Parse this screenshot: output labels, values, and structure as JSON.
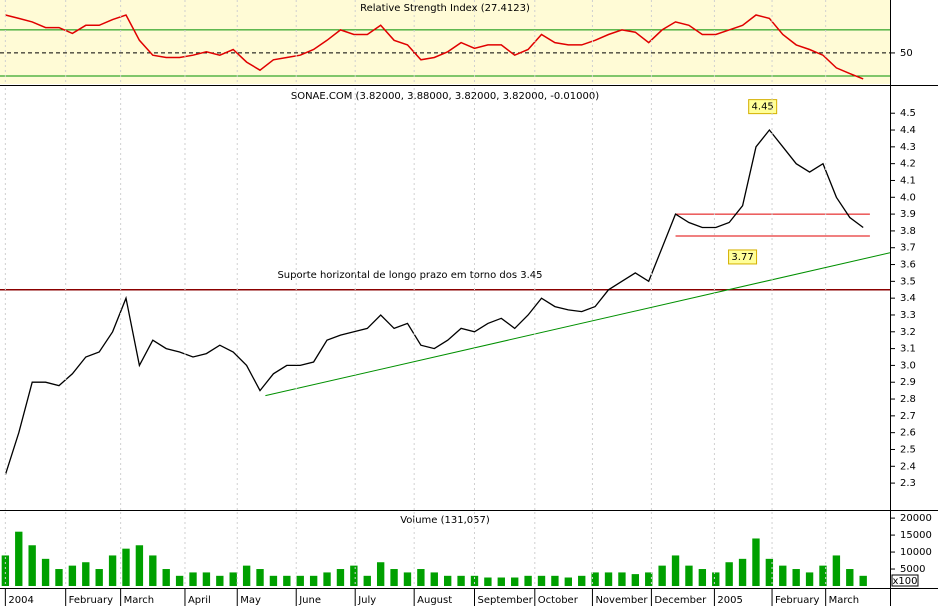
{
  "chart_data": [
    {
      "type": "line",
      "title": "Relative Strength Index (27.4123)",
      "color": "#e00000",
      "x": [
        0,
        1,
        2,
        3,
        4,
        5,
        6,
        7,
        8,
        9,
        10,
        11,
        12,
        13,
        14,
        15,
        16,
        17,
        18,
        19,
        20,
        21,
        22,
        23,
        24,
        25,
        26,
        27,
        28,
        29,
        30,
        31,
        32,
        33,
        34,
        35,
        36,
        37,
        38,
        39,
        40,
        41,
        42,
        43,
        44,
        45,
        46,
        47,
        48,
        49,
        50,
        51,
        52,
        53,
        54,
        55,
        56,
        57,
        58,
        59,
        60,
        61,
        62,
        63,
        64
      ],
      "values": [
        83,
        80,
        77,
        72,
        72,
        67,
        74,
        74,
        79,
        83,
        61,
        48,
        46,
        46,
        48,
        51,
        48,
        53,
        42,
        35,
        44,
        46,
        48,
        53,
        61,
        70,
        66,
        66,
        74,
        61,
        57,
        44,
        46,
        51,
        59,
        54,
        57,
        57,
        48,
        53,
        66,
        59,
        57,
        57,
        61,
        66,
        70,
        68,
        59,
        70,
        77,
        74,
        66,
        66,
        70,
        74,
        83,
        80,
        66,
        57,
        53,
        48,
        37,
        32,
        27.4
      ],
      "xlim": [
        -0.4,
        66
      ],
      "ylim": [
        23,
        96
      ],
      "yticks": [
        50
      ],
      "levels": [
        30,
        70
      ],
      "level_color": "#009000",
      "grid": true
    },
    {
      "type": "line",
      "title": "SONAE.COM (3.82000, 3.88000, 3.82000, 3.82000, -0.01000)",
      "color": "#000000",
      "x": [
        0,
        1,
        2,
        3,
        4,
        5,
        6,
        7,
        8,
        9,
        10,
        11,
        12,
        13,
        14,
        15,
        16,
        17,
        18,
        19,
        20,
        21,
        22,
        23,
        24,
        25,
        26,
        27,
        28,
        29,
        30,
        31,
        32,
        33,
        34,
        35,
        36,
        37,
        38,
        39,
        40,
        41,
        42,
        43,
        44,
        45,
        46,
        47,
        48,
        49,
        50,
        51,
        52,
        53,
        54,
        55,
        56,
        57,
        58,
        59,
        60,
        61,
        62,
        63,
        64
      ],
      "values": [
        2.35,
        2.6,
        2.9,
        2.9,
        2.88,
        2.95,
        3.05,
        3.08,
        3.2,
        3.4,
        3.0,
        3.15,
        3.1,
        3.08,
        3.05,
        3.07,
        3.12,
        3.08,
        3.0,
        2.85,
        2.95,
        3.0,
        3.0,
        3.02,
        3.15,
        3.18,
        3.2,
        3.22,
        3.3,
        3.22,
        3.25,
        3.12,
        3.1,
        3.15,
        3.22,
        3.2,
        3.25,
        3.28,
        3.22,
        3.3,
        3.4,
        3.35,
        3.33,
        3.32,
        3.35,
        3.45,
        3.5,
        3.55,
        3.5,
        3.7,
        3.9,
        3.85,
        3.82,
        3.82,
        3.85,
        3.95,
        4.3,
        4.4,
        4.3,
        4.2,
        4.15,
        4.2,
        4.0,
        3.88,
        3.82
      ],
      "xlim": [
        -0.4,
        66
      ],
      "ylim": [
        2.14,
        4.65
      ],
      "yticks": [
        2.3,
        2.4,
        2.5,
        2.6,
        2.7,
        2.8,
        2.9,
        {
          "value": 3,
          "label": "3.0"
        },
        3.1,
        3.2,
        3.3,
        3.4,
        3.5,
        3.6,
        3.7,
        3.8,
        3.9,
        {
          "value": 4,
          "label": "4.0"
        },
        4.1,
        4.2,
        4.3,
        4.4,
        4.5
      ],
      "lines": [
        {
          "points": [
            [
              -0.4,
              3.45
            ],
            [
              66,
              3.45
            ]
          ],
          "color": "#8b0000"
        },
        {
          "points": [
            [
              50,
              3.9
            ],
            [
              64.5,
              3.9
            ]
          ],
          "color": "#e00000"
        },
        {
          "points": [
            [
              50,
              3.77
            ],
            [
              64.5,
              3.77
            ]
          ],
          "color": "#e00000"
        },
        {
          "points": [
            [
              19.4,
              2.82
            ],
            [
              66,
              3.67
            ]
          ],
          "color": "#009000"
        }
      ],
      "support_label": "Suporte horizontal de longo prazo em torno dos 3.45",
      "labels": [
        {
          "x": 56.5,
          "value": 4.45,
          "position": "above"
        },
        {
          "x": 55,
          "value": 3.77,
          "position": "below"
        }
      ]
    },
    {
      "type": "bar",
      "title": "Volume (131,057)",
      "color": "#00a000",
      "y_unit_label": "x100",
      "x": [
        0,
        1,
        2,
        3,
        4,
        5,
        6,
        7,
        8,
        9,
        10,
        11,
        12,
        13,
        14,
        15,
        16,
        17,
        18,
        19,
        20,
        21,
        22,
        23,
        24,
        25,
        26,
        27,
        28,
        29,
        30,
        31,
        32,
        33,
        34,
        35,
        36,
        37,
        38,
        39,
        40,
        41,
        42,
        43,
        44,
        45,
        46,
        47,
        48,
        49,
        50,
        51,
        52,
        53,
        54,
        55,
        56,
        57,
        58,
        59,
        60,
        61,
        62,
        63,
        64
      ],
      "values": [
        9000,
        16000,
        12000,
        8000,
        5000,
        6000,
        7000,
        5000,
        9000,
        11000,
        12000,
        9000,
        5000,
        3000,
        4000,
        4000,
        3000,
        4000,
        6000,
        5000,
        3000,
        3000,
        3000,
        3000,
        4000,
        5000,
        6000,
        3000,
        7000,
        5000,
        4000,
        5000,
        4000,
        3000,
        3000,
        3000,
        2500,
        2500,
        2500,
        3000,
        3000,
        3000,
        2500,
        3000,
        4000,
        4000,
        4000,
        3500,
        4000,
        6000,
        9000,
        6000,
        5000,
        4000,
        7000,
        8000,
        14000,
        8000,
        6000,
        5000,
        4000,
        6000,
        9000,
        5000,
        3000
      ],
      "xlim": [
        -0.4,
        66
      ],
      "ylim": [
        0,
        21800
      ],
      "yticks": [
        5000,
        10000,
        15000,
        20000
      ],
      "xticks": [
        {
          "value": 0,
          "label": "2004"
        },
        {
          "value": 4.5,
          "label": "February"
        },
        {
          "value": 8.6,
          "label": "March"
        },
        {
          "value": 13.4,
          "label": "April"
        },
        {
          "value": 17.3,
          "label": "May"
        },
        {
          "value": 21.7,
          "label": "June"
        },
        {
          "value": 26.1,
          "label": "July"
        },
        {
          "value": 30.5,
          "label": "August"
        },
        {
          "value": 35,
          "label": "September"
        },
        {
          "value": 39.5,
          "label": "October"
        },
        {
          "value": 43.8,
          "label": "November"
        },
        {
          "value": 48.2,
          "label": "December"
        },
        {
          "value": 52.9,
          "label": "2005"
        },
        {
          "value": 57.2,
          "label": "February"
        },
        {
          "value": 61.2,
          "label": "March"
        }
      ]
    }
  ]
}
